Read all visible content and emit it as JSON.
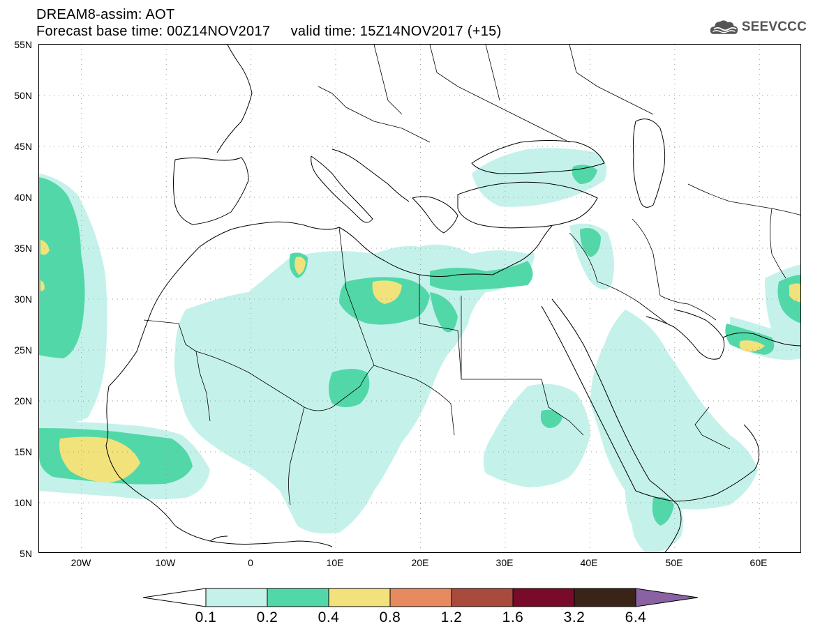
{
  "title_line1": "DREAM8-assim: AOT",
  "title_line2": "Forecast base time: 00Z14NOV2017     valid time: 15Z14NOV2017 (+15)",
  "logo_text": "SEEVCCC",
  "logo_icon": "cloud-icon",
  "map": {
    "lon_min": -25,
    "lon_max": 65,
    "lat_min": 5,
    "lat_max": 55,
    "lat_ticks": [
      {
        "value": 55,
        "label": "55N"
      },
      {
        "value": 50,
        "label": "50N"
      },
      {
        "value": 45,
        "label": "45N"
      },
      {
        "value": 40,
        "label": "40N"
      },
      {
        "value": 35,
        "label": "35N"
      },
      {
        "value": 30,
        "label": "30N"
      },
      {
        "value": 25,
        "label": "25N"
      },
      {
        "value": 20,
        "label": "20N"
      },
      {
        "value": 15,
        "label": "15N"
      },
      {
        "value": 10,
        "label": "10N"
      },
      {
        "value": 5,
        "label": "5N"
      }
    ],
    "lon_ticks": [
      {
        "value": -20,
        "label": "20W"
      },
      {
        "value": -10,
        "label": "10W"
      },
      {
        "value": 0,
        "label": "0"
      },
      {
        "value": 10,
        "label": "10E"
      },
      {
        "value": 20,
        "label": "20E"
      },
      {
        "value": 30,
        "label": "30E"
      },
      {
        "value": 40,
        "label": "40E"
      },
      {
        "value": 50,
        "label": "50E"
      },
      {
        "value": 60,
        "label": "60E"
      }
    ],
    "grid_color": "#999999",
    "coast_color": "#000000"
  },
  "colorbar": {
    "labels": [
      "0.1",
      "0.2",
      "0.4",
      "0.8",
      "1.2",
      "1.6",
      "3.2",
      "6.4"
    ],
    "colors": [
      "#ffffff",
      "#c4f2ea",
      "#52d8a8",
      "#f2e27c",
      "#e88a60",
      "#a84a3c",
      "#780a2a",
      "#3a2418",
      "#8a62a4"
    ]
  }
}
